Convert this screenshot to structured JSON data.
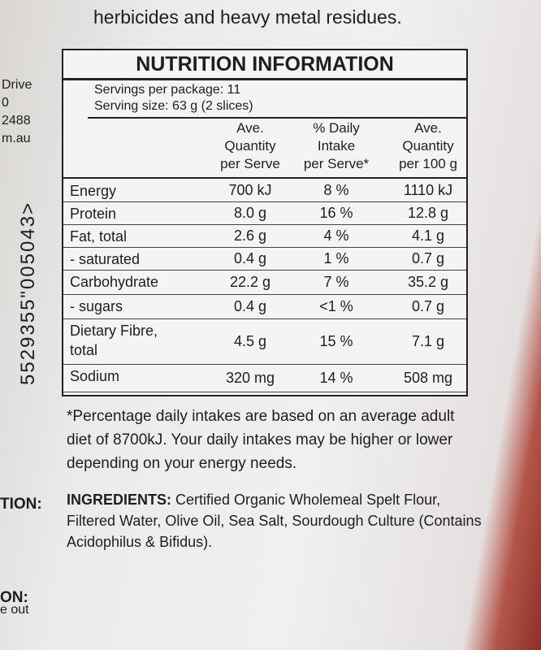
{
  "top_text": "herbicides and heavy metal residues.",
  "side_text": {
    "lines": [
      "Drive",
      "0",
      "2488",
      "m.au"
    ],
    "barcode": "5529355\"005043>",
    "bottom": [
      "TION:",
      "ON:",
      "e out"
    ]
  },
  "nutrition": {
    "title": "NUTRITION INFORMATION",
    "servings": "Servings per package: 11",
    "serving_size": "Serving size: 63 g (2 slices)",
    "headers": [
      [
        "Ave.",
        "Quantity",
        "per Serve"
      ],
      [
        "% Daily",
        "Intake",
        "per Serve*"
      ],
      [
        "Ave.",
        "Quantity",
        "per 100 g"
      ]
    ],
    "rows": [
      [
        "Energy",
        "700 kJ",
        "8 %",
        "1110 kJ"
      ],
      [
        "Protein",
        "8.0 g",
        "16 %",
        "12.8 g"
      ],
      [
        "Fat, total",
        "2.6 g",
        "4 %",
        "4.1 g"
      ],
      [
        "- saturated",
        "0.4 g",
        "1 %",
        "0.7 g"
      ],
      [
        "Carbohydrate",
        "22.2 g",
        "7 %",
        "35.2 g"
      ],
      [
        "- sugars",
        "0.4 g",
        "<1 %",
        "0.7 g"
      ],
      [
        "Dietary Fibre, total",
        "4.5 g",
        "15 %",
        "7.1 g"
      ],
      [
        "Sodium",
        "320 mg",
        "14 %",
        "508 mg"
      ]
    ]
  },
  "footnote": "*Percentage daily intakes are based on an average adult diet of 8700kJ. Your daily intakes may be higher or lower depending on your energy needs.",
  "ingredients": {
    "label": "INGREDIENTS:",
    "text": "Certified Organic Wholemeal Spelt Flour, Filtered Water, Olive Oil, Sea Salt, Sourdough Culture (Contains Acidophilus & Bifidus)."
  }
}
